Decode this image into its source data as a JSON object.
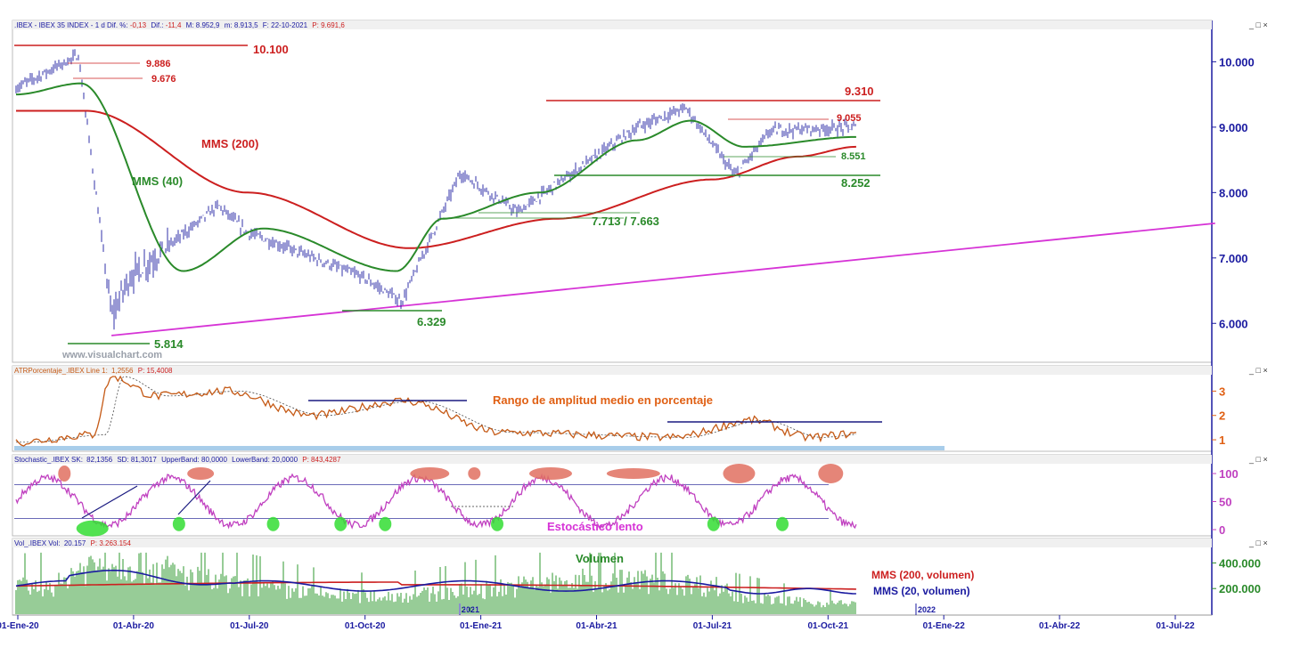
{
  "colors": {
    "price": "#1a1aa0",
    "mms200": "#cc1f1f",
    "mms40": "#2a8a2a",
    "trend": "#d633d6",
    "axis_text": "#1a1aa0",
    "annot_green": "#2a8a2a",
    "annot_red": "#cc1f1f",
    "annot_orange": "#e06014",
    "atr_line": "#c55a16",
    "stoch_line": "#c040c0",
    "volume_bar": "#2f9a2f",
    "band": "#3a3aa0",
    "oversold_marker": "#33dd33",
    "overbought_marker": "#e07060",
    "atr_baseline": "#a8cdea"
  },
  "panels": {
    "price": {
      "header": {
        "prefix": ".IBEX - IBEX 35 INDEX -  1 d  Dif. %:",
        "dif_pct": "-0,13",
        "dif_label": "Dif.:",
        "dif": "-11,4",
        "max_label": "M:",
        "max": "8.952,9",
        "min_label": "m:",
        "min": "8.913,5",
        "date_label": "F:",
        "date": "22-10-2021",
        "close_label": "P:",
        "close": "9.691,6"
      },
      "ticks": [
        "10.000",
        "9.000",
        "8.000",
        "7.000",
        "6.000"
      ],
      "watermark": "www.visualchart.com"
    },
    "atr": {
      "header": {
        "prefix": "ATRPorcentaje_.IBEX  Line 1:",
        "value": "1,2556",
        "close_label": "P:",
        "close": "15,4008"
      },
      "ticks": [
        "3",
        "2",
        "1"
      ],
      "label": "Rango de amplitud medio en porcentaje"
    },
    "stoch": {
      "header": {
        "prefix": "Stochastic_.IBEX  SK:",
        "sk": "82,1356",
        "sd_label": "SD:",
        "sd": "81,3017",
        "ub_label": "UpperBand:",
        "ub": "80,0000",
        "lb_label": "LowerBand:",
        "lb": "20,0000",
        "close_label": "P:",
        "close": "843,4287"
      },
      "ticks": [
        "100",
        "50",
        "0"
      ],
      "label": "Estocástico lento"
    },
    "vol": {
      "header": {
        "prefix": "Vol_.IBEX  Vol:",
        "vol": "20.157",
        "close_label": "P:",
        "close": "3.263.154"
      },
      "ticks": [
        "400.000",
        "200.000"
      ],
      "label": "Volumen",
      "legend_200": "MMS (200, volumen)",
      "legend_20": "MMS (20, volumen)"
    }
  },
  "x_axis": {
    "labels": [
      "01-Ene-20",
      "01-Abr-20",
      "01-Jul-20",
      "01-Oct-20",
      "01-Ene-21",
      "01-Abr-21",
      "01-Jul-21",
      "01-Oct-21",
      "01-Ene-22",
      "01-Abr-22",
      "01-Jul-22"
    ],
    "year_markers": [
      "2021",
      "2022"
    ]
  },
  "annotations": {
    "l10100": "10.100",
    "l9886": "9.886",
    "l9676": "9.676",
    "l9310": "9.310",
    "l9055": "9.055",
    "l8551": "8.551",
    "l8252": "8.252",
    "l7713": "7.713 / 7.663",
    "l6329": "6.329",
    "l5814": "5.814",
    "mms200": "MMS (200)",
    "mms40": "MMS (40)"
  },
  "chart_data": {
    "type": "line",
    "title": "IBEX 35 INDEX - 1 d",
    "x_range": [
      "2020-01-01",
      "2022-09-30"
    ],
    "price": {
      "ylim": [
        5500,
        10400
      ],
      "key_levels": {
        "high_2020": 10100,
        "r1": 9886,
        "r2": 9676,
        "r_2021": 9310,
        "r_range": 9055,
        "s_range": 8551,
        "s_2021": 8252,
        "s_pair": [
          7713,
          7663
        ],
        "low_oct20": 6329,
        "low_mar20": 5814
      },
      "close_points": [
        [
          "2020-01-01",
          9600
        ],
        [
          "2020-02-19",
          10100
        ],
        [
          "2020-03-16",
          6100
        ],
        [
          "2020-03-30",
          6700
        ],
        [
          "2020-06-08",
          7800
        ],
        [
          "2020-06-30",
          7400
        ],
        [
          "2020-09-30",
          6700
        ],
        [
          "2020-10-30",
          6329
        ],
        [
          "2020-12-15",
          8300
        ],
        [
          "2021-01-29",
          7700
        ],
        [
          "2021-05-03",
          9000
        ],
        [
          "2021-06-10",
          9300
        ],
        [
          "2021-07-19",
          8252
        ],
        [
          "2021-08-16",
          8950
        ],
        [
          "2021-10-22",
          9000
        ]
      ],
      "mms200_points": [
        [
          "2020-01-01",
          9250
        ],
        [
          "2020-02-25",
          9250
        ],
        [
          "2020-07-01",
          8000
        ],
        [
          "2020-11-05",
          7150
        ],
        [
          "2021-03-01",
          7600
        ],
        [
          "2021-07-01",
          8200
        ],
        [
          "2021-09-06",
          8550
        ],
        [
          "2021-10-22",
          8700
        ]
      ],
      "mms40_points": [
        [
          "2020-01-01",
          9500
        ],
        [
          "2020-02-21",
          9670
        ],
        [
          "2020-05-11",
          6800
        ],
        [
          "2020-07-13",
          7450
        ],
        [
          "2020-10-26",
          6800
        ],
        [
          "2020-12-01",
          7600
        ],
        [
          "2021-02-15",
          8000
        ],
        [
          "2021-05-03",
          8800
        ],
        [
          "2021-06-14",
          9100
        ],
        [
          "2021-07-26",
          8700
        ],
        [
          "2021-10-22",
          8850
        ]
      ],
      "trendline": [
        [
          "2020-03-16",
          5814
        ],
        [
          "2022-07-31",
          7530
        ]
      ]
    },
    "atr": {
      "ylim": [
        0.6,
        3.6
      ],
      "last": 1.2556,
      "points": [
        [
          "2020-01-01",
          0.9
        ],
        [
          "2020-03-01",
          1.2
        ],
        [
          "2020-03-16",
          3.6
        ],
        [
          "2020-04-20",
          2.8
        ],
        [
          "2020-06-15",
          3.0
        ],
        [
          "2020-08-20",
          2.0
        ],
        [
          "2020-11-01",
          2.6
        ],
        [
          "2021-01-15",
          1.3
        ],
        [
          "2021-06-01",
          1.1
        ],
        [
          "2021-08-01",
          1.8
        ],
        [
          "2021-09-15",
          1.1
        ],
        [
          "2021-10-22",
          1.2556
        ]
      ]
    },
    "stochastic": {
      "ylim": [
        0,
        100
      ],
      "upper_band": 80,
      "lower_band": 20,
      "sk": 82.1356,
      "sd": 81.3017
    },
    "volume": {
      "ylim": [
        0,
        500000
      ],
      "last": 20157,
      "mms200_level": 220000,
      "mms20_end": 180000
    }
  }
}
